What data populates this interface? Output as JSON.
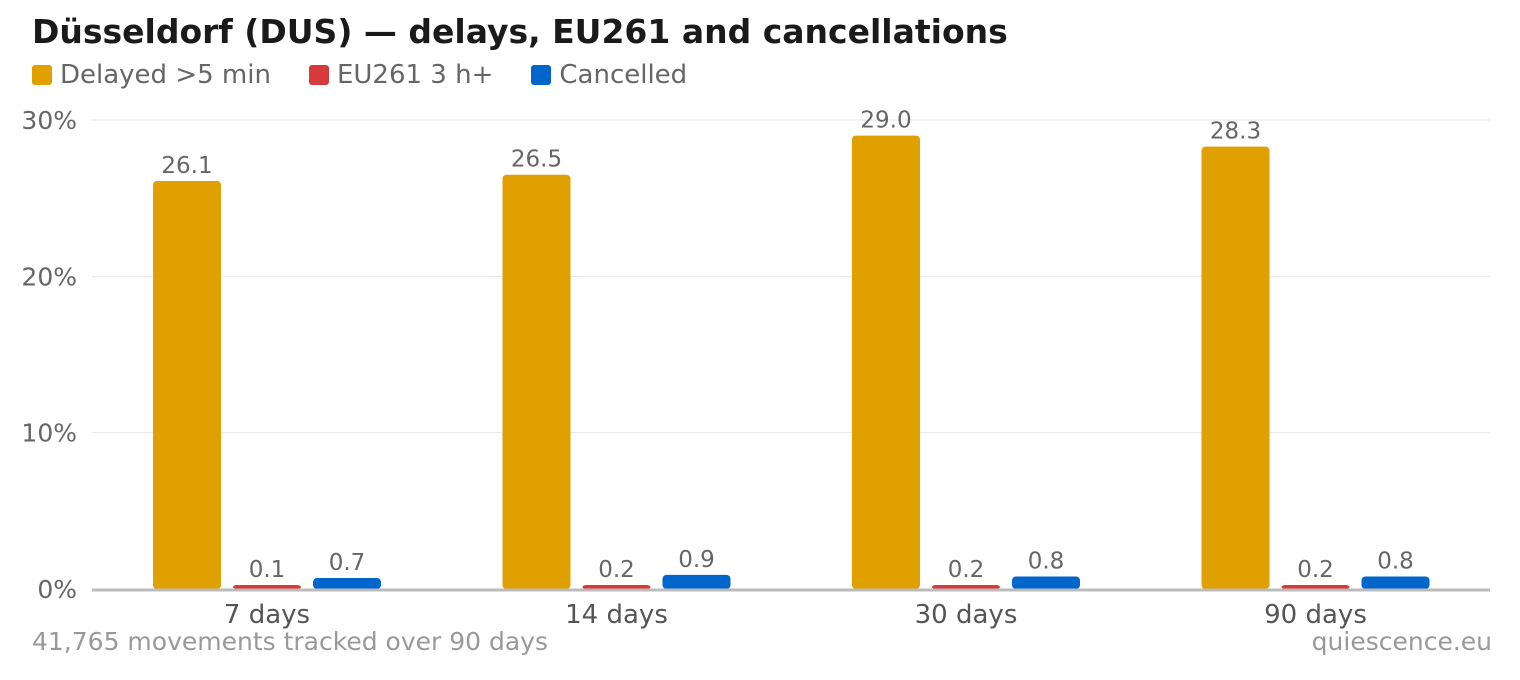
{
  "title": "Düsseldorf (DUS) — delays, EU261 and cancellations",
  "footer": {
    "note": "41,765 movements tracked over 90 days",
    "source": "quiescence.eu"
  },
  "chart_data": {
    "type": "bar",
    "title": "Düsseldorf (DUS) — delays, EU261 and cancellations",
    "categories": [
      "7 days",
      "14 days",
      "30 days",
      "90 days"
    ],
    "series": [
      {
        "name": "Delayed >5 min",
        "color": "#E0A000",
        "values": [
          26.1,
          26.5,
          29.0,
          28.3
        ],
        "labels": [
          "26.1",
          "26.5",
          "29.0",
          "28.3"
        ]
      },
      {
        "name": "EU261 3 h+",
        "color": "#D63A3A",
        "values": [
          0.1,
          0.2,
          0.2,
          0.2
        ],
        "labels": [
          "0.1",
          "0.2",
          "0.2",
          "0.2"
        ]
      },
      {
        "name": "Cancelled",
        "color": "#0066CC",
        "values": [
          0.7,
          0.9,
          0.8,
          0.8
        ],
        "labels": [
          "0.7",
          "0.9",
          "0.8",
          "0.8"
        ]
      }
    ],
    "ylim": [
      0,
      30
    ],
    "yticks": [
      0,
      10,
      20,
      30
    ],
    "ytick_labels": [
      "0%",
      "10%",
      "20%",
      "30%"
    ],
    "grid": true,
    "legend": "top-left"
  }
}
